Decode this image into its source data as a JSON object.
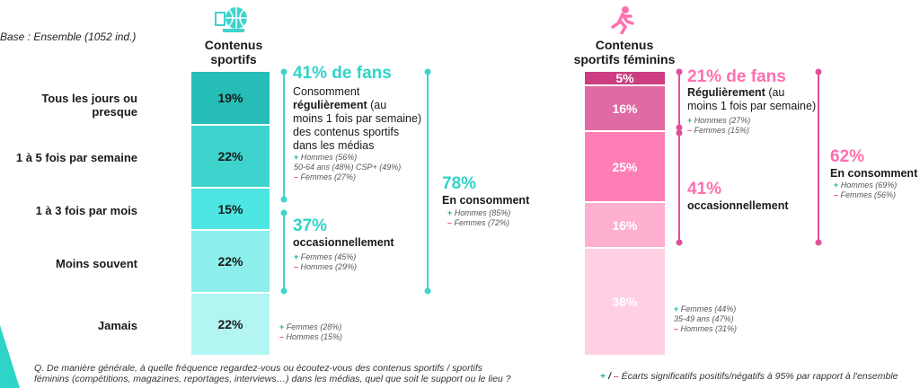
{
  "base": "Base : Ensemble (1052 ind.)",
  "rows": [
    "Tous les jours ou presque",
    "1 à 5 fois par semaine",
    "1 à 3 fois par mois",
    "Moins souvent",
    "Jamais"
  ],
  "chart_data": [
    {
      "type": "bar",
      "title": "Contenus sportifs",
      "categories": [
        "Tous les jours ou presque",
        "1 à 5 fois par semaine",
        "1 à 3 fois par mois",
        "Moins souvent",
        "Jamais"
      ],
      "values": [
        19,
        22,
        15,
        22,
        22
      ],
      "labels": [
        "19%",
        "22%",
        "15%",
        "22%",
        "22%"
      ],
      "colors": [
        "#26bdb6",
        "#3fd3ce",
        "#4de6e3",
        "#8defeb",
        "#b3f5f2"
      ],
      "stacked": true
    },
    {
      "type": "bar",
      "title": "Contenus sportifs féminins",
      "categories": [
        "Tous les jours ou presque",
        "1 à 5 fois par semaine",
        "1 à 3 fois par mois",
        "Moins souvent",
        "Jamais"
      ],
      "values": [
        5,
        16,
        25,
        16,
        38
      ],
      "labels": [
        "5%",
        "16%",
        "25%",
        "16%",
        "38%"
      ],
      "colors": [
        "#cc3d82",
        "#e06aa3",
        "#ff7eb5",
        "#ffb0d0",
        "#ffd0e3"
      ],
      "stacked": true
    }
  ],
  "left": {
    "title_line1": "Contenus",
    "title_line2": "sportifs",
    "fans_big": "41% de fans",
    "fans_l1": "Consomment",
    "fans_l2": "régulièrement",
    "fans_l2b": " (au",
    "fans_l3": "moins 1 fois par semaine)",
    "fans_l4": "des contenus sportifs",
    "fans_l5": "dans les médias",
    "fans_s1": "Hommes (56%)",
    "fans_s2": "50-64 ans (48%)  CSP+ (49%)",
    "fans_s3": "Femmes (27%)",
    "occ_big": "37%",
    "occ_label": "occasionnellement",
    "occ_s1": "Femmes (45%)",
    "occ_s2": "Hommes (29%)",
    "total_big": "78%",
    "total_label": "En consomment",
    "total_s1": "Hommes (85%)",
    "total_s2": "Femmes (72%)",
    "never_s1": "Femmes (28%)",
    "never_s2": "Hommes (15%)"
  },
  "right": {
    "title_line1": "Contenus",
    "title_line2": "sportifs féminins",
    "fans_big": "21% de fans",
    "fans_l1": "Régulièrement",
    "fans_l1b": " (au",
    "fans_l2": "moins 1 fois par semaine)",
    "fans_s1": "Hommes (27%)",
    "fans_s2": "Femmes (15%)",
    "occ_big": "41%",
    "occ_label": "occasionnellement",
    "total_big": "62%",
    "total_label": "En consomment",
    "total_s1": "Hommes (69%)",
    "total_s2": "Femmes (56%)",
    "never_s1": "Femmes (44%)",
    "never_s2": "35-49 ans (47%)",
    "never_s3": "Hommes (31%)"
  },
  "question_l1": "Q. De manière générale, à quelle fréquence regardez-vous ou écoutez-vous des contenus sportifs  / sportifs",
  "question_l2": "féminins (compétitions, magazines, reportages, interviews…) dans les médias, quel que soit le support ou le lieu ?",
  "legend_plus": "+",
  "legend_sep": " / ",
  "legend_minus": "–",
  "legend_text": " Écarts significatifs positifs/négatifs à 95% par rapport à l'ensemble",
  "sym_plus": "+",
  "sym_minus": "–"
}
